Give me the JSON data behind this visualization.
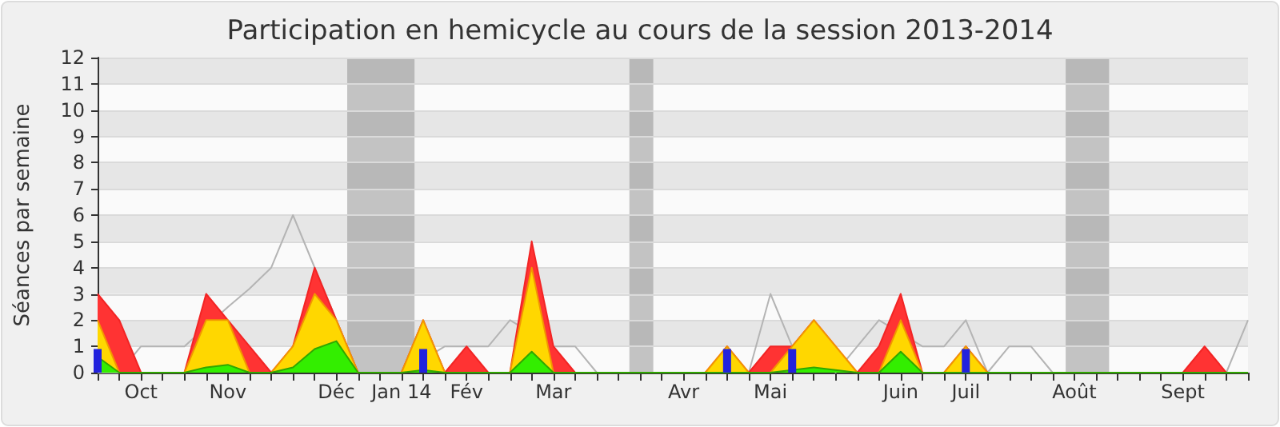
{
  "chart_data": {
    "type": "area",
    "title": "Participation en hemicycle au cours de la session 2013-2014",
    "ylabel": "Séances par semaine",
    "categories": [
      null,
      null,
      "Oct",
      null,
      null,
      null,
      "Nov",
      null,
      null,
      null,
      null,
      "Déc",
      null,
      null,
      "Jan 14",
      null,
      null,
      "Fév",
      null,
      null,
      null,
      "Mar",
      null,
      null,
      null,
      null,
      null,
      "Avr",
      null,
      null,
      null,
      "Mai",
      null,
      null,
      null,
      null,
      null,
      "Juin",
      null,
      null,
      "Juil",
      null,
      null,
      null,
      null,
      "Août",
      null,
      null,
      null,
      null,
      "Sept",
      null,
      null,
      null
    ],
    "ylim": [
      0,
      12
    ],
    "yticks": [
      0,
      1,
      2,
      3,
      4,
      5,
      6,
      7,
      8,
      9,
      10,
      11,
      12
    ],
    "grid": "y",
    "series": [
      {
        "color": "#ff3333",
        "values": [
          3,
          2,
          0,
          0,
          0,
          3,
          2,
          1,
          0,
          1,
          4,
          2,
          0,
          0,
          0,
          2,
          0,
          1,
          0,
          0,
          5,
          1,
          0,
          0,
          0,
          0,
          0,
          0,
          0,
          1,
          0,
          1,
          1,
          2,
          1,
          0,
          1,
          3,
          0,
          0,
          1,
          0,
          0,
          0,
          0,
          0,
          0,
          0,
          0,
          0,
          0,
          1,
          0,
          0
        ]
      },
      {
        "color": "#ffd700",
        "values": [
          2,
          0,
          0,
          0,
          0,
          2,
          2,
          0,
          0,
          1,
          3,
          2,
          0,
          0,
          0,
          2,
          0,
          0,
          0,
          0,
          4,
          0,
          0,
          0,
          0,
          0,
          0,
          0,
          0,
          1,
          0,
          0,
          1,
          2,
          1,
          0,
          0,
          2,
          0,
          0,
          1,
          0,
          0,
          0,
          0,
          0,
          0,
          0,
          0,
          0,
          0,
          0,
          0,
          0
        ]
      },
      {
        "color": "#33ee00",
        "values": [
          0.6,
          0,
          0,
          0,
          0,
          0.2,
          0.3,
          0,
          0,
          0.2,
          0.9,
          1.2,
          0,
          0,
          0,
          0.1,
          0,
          0,
          0,
          0,
          0.8,
          0,
          0,
          0,
          0,
          0,
          0,
          0,
          0,
          0,
          0,
          0,
          0.1,
          0.2,
          0.1,
          0,
          0,
          0.8,
          0,
          0,
          0,
          0,
          0,
          0,
          0,
          0,
          0,
          0,
          0,
          0,
          0,
          0,
          0,
          0
        ]
      },
      {
        "type": "line",
        "color": "#b4b4b4",
        "values": [
          0,
          0,
          1,
          1,
          1,
          null,
          2.5,
          3.2,
          4,
          6,
          null,
          null,
          0,
          0,
          0,
          null,
          1,
          1,
          1,
          2,
          null,
          1,
          1,
          0,
          0,
          0,
          0,
          0,
          0,
          0,
          0,
          3,
          1,
          null,
          0,
          1,
          2,
          null,
          1,
          1,
          2,
          0,
          1,
          1,
          0,
          0,
          0,
          0,
          0,
          0,
          0,
          0,
          0,
          2
        ]
      },
      {
        "type": "bar",
        "color": "#2222dd",
        "values": [
          0.9,
          null,
          null,
          null,
          null,
          null,
          null,
          null,
          null,
          null,
          null,
          null,
          null,
          null,
          null,
          0.9,
          null,
          null,
          null,
          null,
          null,
          null,
          null,
          null,
          null,
          null,
          null,
          null,
          null,
          0.9,
          null,
          null,
          0.9,
          null,
          null,
          null,
          null,
          null,
          null,
          null,
          0.9,
          null,
          null,
          null,
          null,
          null,
          null,
          null,
          null,
          null,
          null,
          null,
          null,
          null
        ]
      }
    ]
  }
}
